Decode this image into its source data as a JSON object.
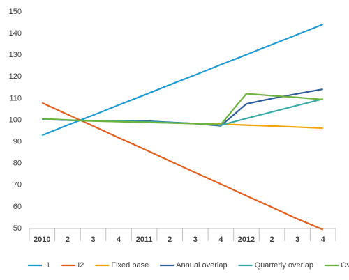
{
  "chart_data": {
    "type": "line",
    "categories": [
      "2010",
      "2",
      "3",
      "4",
      "2011",
      "2",
      "3",
      "4",
      "2012",
      "2",
      "3",
      "4"
    ],
    "series": [
      {
        "name": "I1",
        "color": "#1f9bd1",
        "values": [
          93,
          97.7,
          102.3,
          107,
          111.6,
          116.3,
          120.9,
          125.6,
          130.2,
          134.9,
          139.5,
          144.2
        ]
      },
      {
        "name": "I2",
        "color": "#e2601f",
        "values": [
          108,
          102.6,
          97.3,
          91.9,
          86.6,
          81.2,
          75.8,
          70.5,
          65.1,
          59.8,
          54.4,
          49.5
        ]
      },
      {
        "name": "Fixed base",
        "color": "#f0a30a",
        "values": [
          100.5,
          100,
          99.7,
          99.4,
          99.1,
          98.8,
          98.5,
          98.2,
          97.7,
          97.3,
          96.8,
          96.3
        ]
      },
      {
        "name": "Annual overlap",
        "color": "#2e5f9a",
        "values": [
          100.3,
          100,
          99.7,
          99.5,
          99.6,
          99,
          98.4,
          97.4,
          107.5,
          110,
          112.2,
          114.3
        ]
      },
      {
        "name": "Quarterly overlap",
        "color": "#3aaba6",
        "values": [
          100.6,
          100,
          99.7,
          99.5,
          99.3,
          98.9,
          98.4,
          97.7,
          100.8,
          103.8,
          106.8,
          109.8
        ]
      },
      {
        "name": "Over the year",
        "color": "#6db33f",
        "values": [
          100.7,
          100.1,
          99.6,
          99.3,
          99,
          98.7,
          98.4,
          98,
          112.2,
          111.3,
          110.5,
          109.5
        ]
      }
    ],
    "ylim": [
      50,
      150
    ],
    "yticks": [
      50,
      60,
      70,
      80,
      90,
      100,
      110,
      120,
      130,
      140,
      150
    ],
    "grid": false,
    "legend": "bottom"
  }
}
